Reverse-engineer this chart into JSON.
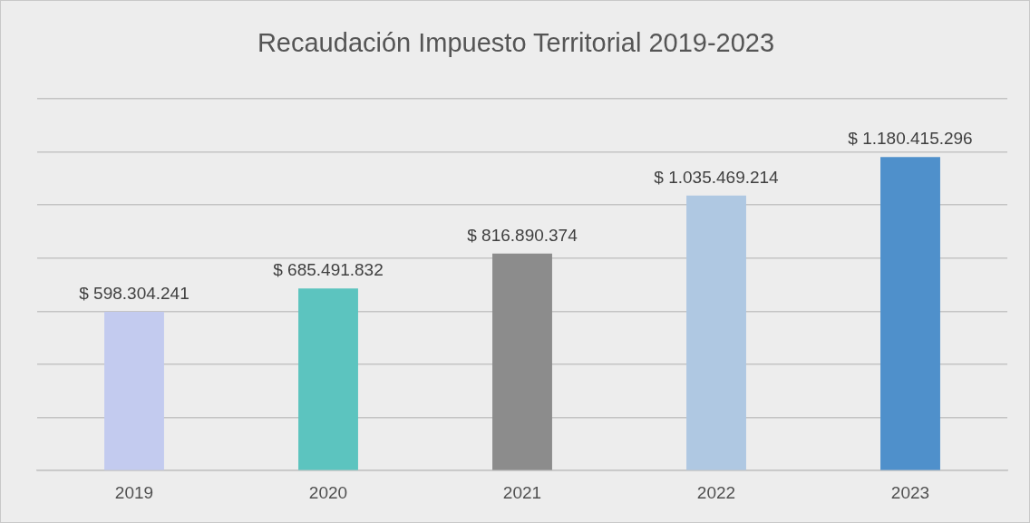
{
  "chart_data": {
    "type": "bar",
    "title": "Recaudación Impuesto Territorial 2019-2023",
    "categories": [
      "2019",
      "2020",
      "2021",
      "2022",
      "2023"
    ],
    "values": [
      598304241,
      685491832,
      816890374,
      1035469214,
      1180415296
    ],
    "colors": [
      "#c3cbef",
      "#5cc4bf",
      "#8c8c8c",
      "#afc8e2",
      "#4f90cb"
    ],
    "value_labels": [
      "$ 598.304.241",
      "$ 685.491.832",
      "$ 816.890.374",
      "$ 1.035.469.214",
      "$ 1.180.415.296"
    ],
    "ylim": [
      0,
      1400000000
    ],
    "yticks": [
      {
        "value": 0,
        "label": null
      },
      {
        "value": 200000000,
        "label": null
      },
      {
        "value": 400000000,
        "label": null
      },
      {
        "value": 600000000,
        "label": null
      },
      {
        "value": 800000000,
        "label": null
      },
      {
        "value": 1000000000,
        "label": null
      },
      {
        "value": 1200000000,
        "label": null
      },
      {
        "value": 1400000000,
        "label": null
      }
    ],
    "grid": "y",
    "tick_labels": "x",
    "legend": false
  }
}
